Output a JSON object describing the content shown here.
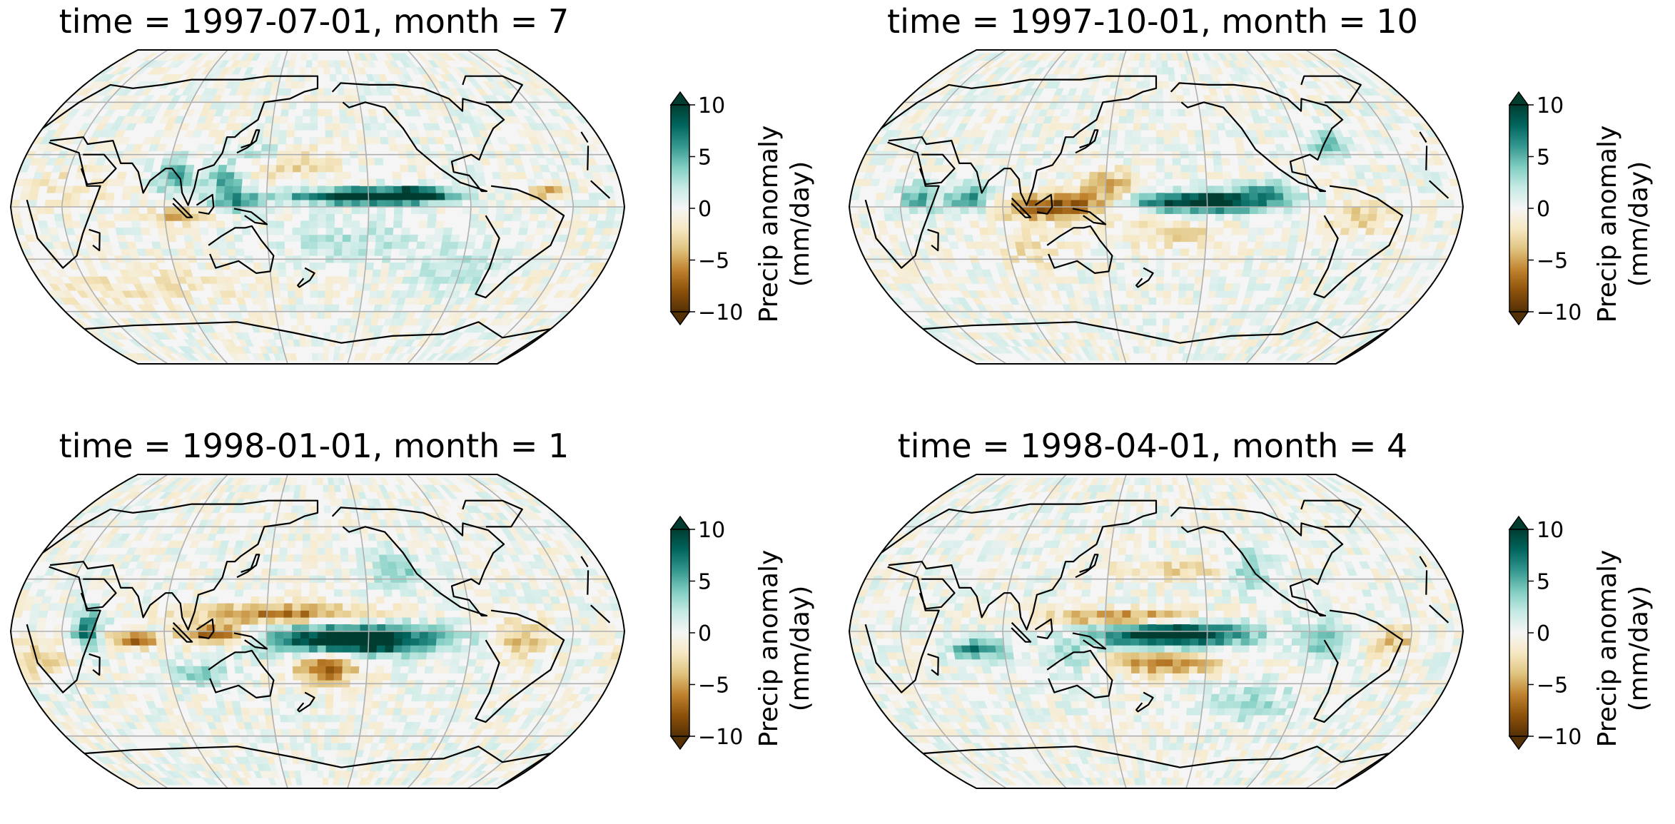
{
  "panels": [
    {
      "title": "time = 1997-07-01, month = 7"
    },
    {
      "title": "time = 1997-10-01, month = 10"
    },
    {
      "title": "time = 1998-01-01, month = 1"
    },
    {
      "title": "time = 1998-04-01, month = 4"
    }
  ],
  "colorbar": {
    "label_line1": "Precip anomaly",
    "label_line2": "(mm/day)",
    "ticks": [
      "10",
      "5",
      "0",
      "−5",
      "−10"
    ],
    "tick_values": [
      10,
      5,
      0,
      -5,
      -10
    ],
    "range": [
      -10,
      10
    ],
    "extend": "both",
    "colormap": "BrBG",
    "colors": [
      "#543005",
      "#8c510a",
      "#bf812d",
      "#dfc27d",
      "#f6e8c3",
      "#f5f5f5",
      "#c7eae5",
      "#80cdc1",
      "#35978f",
      "#01665e",
      "#003c30"
    ]
  },
  "map": {
    "projection": "Robinson",
    "central_longitude": 180,
    "ocean_background": "#f5f5f5",
    "coastline_color": "#000000",
    "gridline_color": "#b0b0b0"
  }
}
